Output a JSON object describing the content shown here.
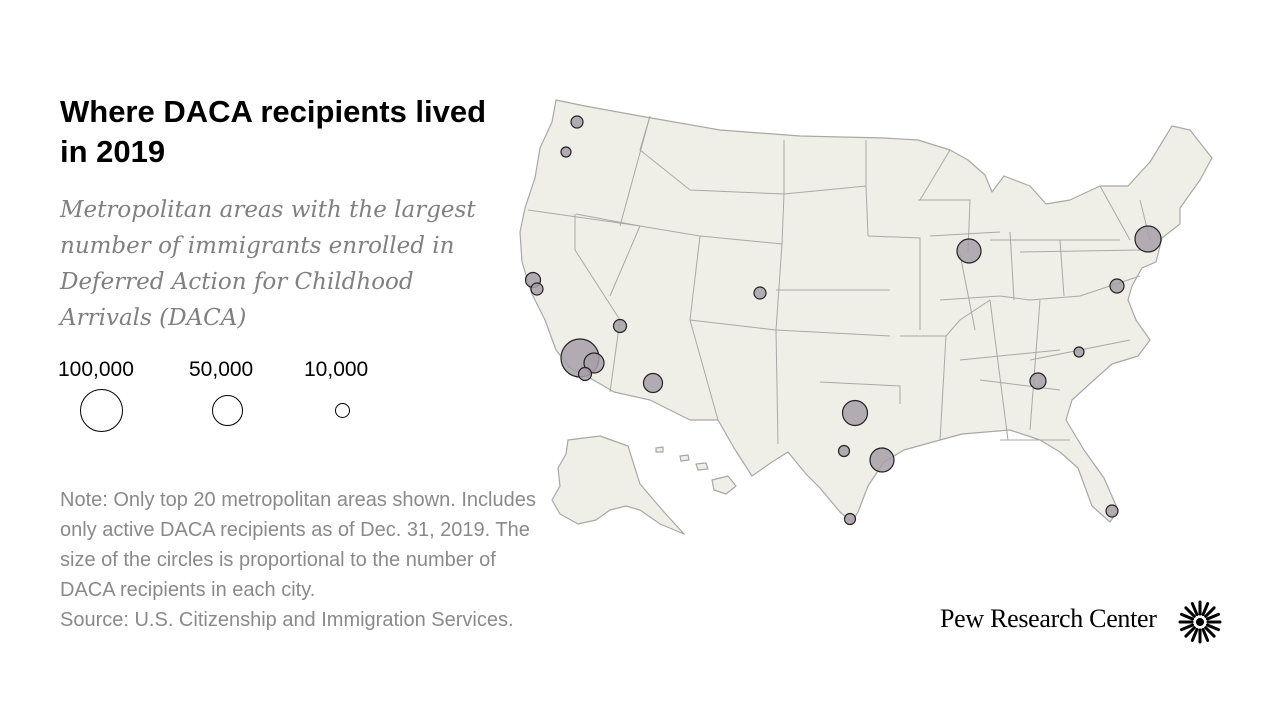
{
  "title": "Where DACA recipients lived in 2019",
  "subtitle": "Metropolitan areas with the largest number of immigrants enrolled in Deferred Action for Childhood Arrivals (DACA)",
  "legend": {
    "items": [
      {
        "label": "100,000",
        "value": 100000
      },
      {
        "label": "50,000",
        "value": 50000
      },
      {
        "label": "10,000",
        "value": 10000
      }
    ]
  },
  "note": {
    "lines": [
      "Note: Only top 20 metropolitan areas shown. Includes",
      "only active DACA recipients as of Dec. 31, 2019. The",
      "size of the circles is proportional to the number of",
      "DACA recipients in each city."
    ],
    "source": "Source: U.S. Citizenship and Immigration Services."
  },
  "brand": {
    "name": "Pew Research Center",
    "logo_icon": "pew-sunburst-icon"
  },
  "colors": {
    "land": "#efefe7",
    "border": "#a8a8a8",
    "bubble_fill": "#a79fa8",
    "bubble_stroke": "#222222",
    "text_gray": "#8a8a8a"
  },
  "chart_data": {
    "type": "bubble-map",
    "region": "United States",
    "size_encoding": "circle area proportional to number of DACA recipients",
    "points": [
      {
        "location": "Los Angeles, CA",
        "value": 95000
      },
      {
        "location": "New York, NY",
        "value": 31000
      },
      {
        "location": "Dallas, TX",
        "value": 28000
      },
      {
        "location": "Houston, TX",
        "value": 27000
      },
      {
        "location": "Chicago, IL",
        "value": 27000
      },
      {
        "location": "Riverside, CA",
        "value": 17000
      },
      {
        "location": "Phoenix, AZ",
        "value": 16000
      },
      {
        "location": "Atlanta, GA",
        "value": 13000
      },
      {
        "location": "San Francisco, CA",
        "value": 10000
      },
      {
        "location": "Washington, DC",
        "value": 9500
      },
      {
        "location": "San Diego, CA",
        "value": 8000
      },
      {
        "location": "Las Vegas, NV",
        "value": 7500
      },
      {
        "location": "San Jose, CA",
        "value": 7000
      },
      {
        "location": "Seattle, WA",
        "value": 6500
      },
      {
        "location": "Denver, CO",
        "value": 6000
      },
      {
        "location": "Miami, FL",
        "value": 6000
      },
      {
        "location": "McAllen, TX",
        "value": 5800
      },
      {
        "location": "San Antonio, TX",
        "value": 5700
      },
      {
        "location": "Portland, OR",
        "value": 4500
      },
      {
        "location": "Charlotte, NC",
        "value": 4200
      }
    ]
  }
}
